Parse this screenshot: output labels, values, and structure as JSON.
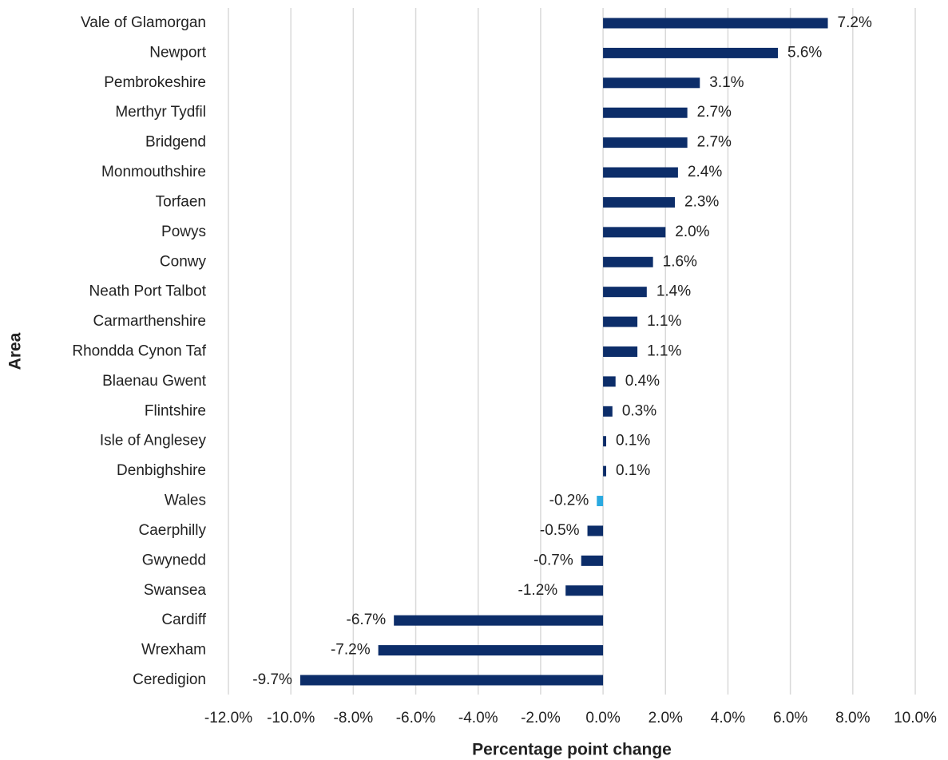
{
  "chart_data": {
    "type": "hbar",
    "x_label": "Percentage point change",
    "y_label": "Area",
    "categories": [
      "Vale of Glamorgan",
      "Newport",
      "Pembrokeshire",
      "Merthyr Tydfil",
      "Bridgend",
      "Monmouthshire",
      "Torfaen",
      "Powys",
      "Conwy",
      "Neath Port Talbot",
      "Carmarthenshire",
      "Rhondda Cynon Taf",
      "Blaenau Gwent",
      "Flintshire",
      "Isle of Anglesey",
      "Denbighshire",
      "Wales",
      "Caerphilly",
      "Gwynedd",
      "Swansea",
      "Cardiff",
      "Wrexham",
      "Ceredigion"
    ],
    "values": [
      7.2,
      5.6,
      3.1,
      2.7,
      2.7,
      2.4,
      2.3,
      2.0,
      1.6,
      1.4,
      1.1,
      1.1,
      0.4,
      0.3,
      0.1,
      0.1,
      -0.2,
      -0.5,
      -0.7,
      -1.2,
      -6.7,
      -7.2,
      -9.7
    ],
    "value_labels": [
      "7.2%",
      "5.6%",
      "3.1%",
      "2.7%",
      "2.7%",
      "2.4%",
      "2.3%",
      "2.0%",
      "1.6%",
      "1.4%",
      "1.1%",
      "1.1%",
      "0.4%",
      "0.3%",
      "0.1%",
      "0.1%",
      "-0.2%",
      "-0.5%",
      "-0.7%",
      "-1.2%",
      "-6.7%",
      "-7.2%",
      "-9.7%"
    ],
    "colors": [
      "#0c2d69",
      "#0c2d69",
      "#0c2d69",
      "#0c2d69",
      "#0c2d69",
      "#0c2d69",
      "#0c2d69",
      "#0c2d69",
      "#0c2d69",
      "#0c2d69",
      "#0c2d69",
      "#0c2d69",
      "#0c2d69",
      "#0c2d69",
      "#0c2d69",
      "#0c2d69",
      "#2aa9e0",
      "#0c2d69",
      "#0c2d69",
      "#0c2d69",
      "#0c2d69",
      "#0c2d69",
      "#0c2d69"
    ],
    "xlim": [
      -12,
      10
    ],
    "xticks": [
      {
        "value": -12,
        "label": "-12.0%"
      },
      {
        "value": -10,
        "label": "-10.0%"
      },
      {
        "value": -8,
        "label": "-8.0%"
      },
      {
        "value": -6,
        "label": "-6.0%"
      },
      {
        "value": -4,
        "label": "-4.0%"
      },
      {
        "value": -2,
        "label": "-2.0%"
      },
      {
        "value": 0,
        "label": "0.0%"
      },
      {
        "value": 2,
        "label": "2.0%"
      },
      {
        "value": 4,
        "label": "4.0%"
      },
      {
        "value": 6,
        "label": "6.0%"
      },
      {
        "value": 8,
        "label": "8.0%"
      },
      {
        "value": 10,
        "label": "10.0%"
      }
    ],
    "grid": true
  }
}
